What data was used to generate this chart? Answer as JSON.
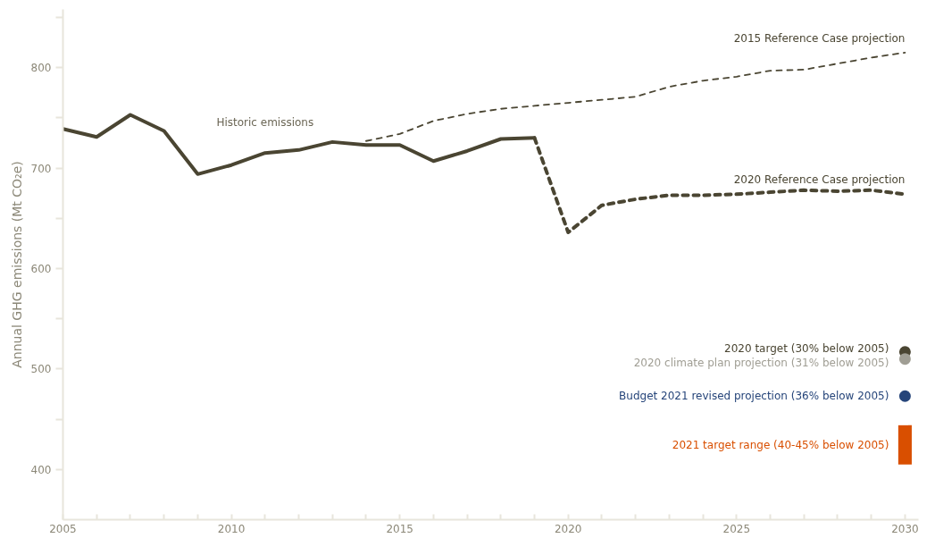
{
  "chart_data": {
    "type": "line",
    "ylabel": "Annual GHG emissions (Mt CO₂e)",
    "xlim": [
      2005,
      2030.4
    ],
    "ylim": [
      350,
      858
    ],
    "xticks": [
      2005,
      {
        "value": 2006,
        "label": null
      },
      {
        "value": 2007,
        "label": null
      },
      {
        "value": 2008,
        "label": null
      },
      {
        "value": 2009,
        "label": null
      },
      2010,
      {
        "value": 2011,
        "label": null
      },
      {
        "value": 2012,
        "label": null
      },
      {
        "value": 2013,
        "label": null
      },
      {
        "value": 2014,
        "label": null
      },
      2015,
      {
        "value": 2016,
        "label": null
      },
      {
        "value": 2017,
        "label": null
      },
      {
        "value": 2018,
        "label": null
      },
      {
        "value": 2019,
        "label": null
      },
      2020,
      {
        "value": 2021,
        "label": null
      },
      {
        "value": 2022,
        "label": null
      },
      {
        "value": 2023,
        "label": null
      },
      {
        "value": 2024,
        "label": null
      },
      2025,
      {
        "value": 2026,
        "label": null
      },
      {
        "value": 2027,
        "label": null
      },
      {
        "value": 2028,
        "label": null
      },
      {
        "value": 2029,
        "label": null
      },
      2030
    ],
    "yticks": [
      400,
      {
        "value": 450,
        "label": null
      },
      500,
      {
        "value": 550,
        "label": null
      },
      600,
      {
        "value": 650,
        "label": null
      },
      700,
      {
        "value": 750,
        "label": null
      },
      800,
      {
        "value": 850,
        "label": null
      }
    ],
    "grid": false,
    "series": [
      {
        "name": "Historic emissions",
        "line_style": "solid",
        "color": "#4a4532",
        "x": [
          2005,
          2006,
          2007,
          2008,
          2009,
          2010,
          2011,
          2012,
          2013,
          2014,
          2015,
          2016,
          2017,
          2018,
          2019
        ],
        "values": [
          739,
          731,
          753,
          737,
          694,
          703,
          715,
          718,
          726,
          723,
          723,
          707,
          717,
          729,
          730
        ]
      },
      {
        "name": "2015 Reference Case projection",
        "line_style": "dashed",
        "color": "#4a4532",
        "x": [
          2014,
          2015,
          2016,
          2017,
          2018,
          2019,
          2020,
          2021,
          2022,
          2023,
          2024,
          2025,
          2026,
          2027,
          2028,
          2029,
          2030
        ],
        "values": [
          727,
          734,
          747,
          754,
          759,
          762,
          765,
          768,
          771,
          781,
          787,
          791,
          797,
          798,
          804,
          810,
          815
        ]
      },
      {
        "name": "2020 Reference Case projection",
        "line_style": "dashed",
        "color": "#4a4532",
        "x": [
          2019,
          2020,
          2021,
          2022,
          2023,
          2024,
          2025,
          2026,
          2027,
          2028,
          2029,
          2030
        ],
        "values": [
          730,
          636,
          663,
          669,
          673,
          673,
          674,
          676,
          678,
          677,
          678,
          674
        ]
      },
      {
        "name": "2020 target (30% below 2005)",
        "type": "scatter",
        "marker": "circle",
        "color": "#4a4532",
        "x": [
          2030
        ],
        "values": [
          517
        ]
      },
      {
        "name": "2020 climate plan projection (31% below 2005)",
        "type": "scatter",
        "marker": "circle",
        "color": "#a09e94",
        "x": [
          2030
        ],
        "values": [
          510
        ]
      },
      {
        "name": "Budget 2021 revised projection (36% below 2005)",
        "type": "scatter",
        "marker": "circle",
        "color": "#26457a",
        "x": [
          2030
        ],
        "values": [
          473
        ]
      },
      {
        "name": "2021 target range (40-45% below 2005)",
        "type": "bar",
        "color": "#d94f00",
        "x": [
          2030
        ],
        "base": [
          405
        ],
        "values": [
          39
        ]
      }
    ]
  }
}
